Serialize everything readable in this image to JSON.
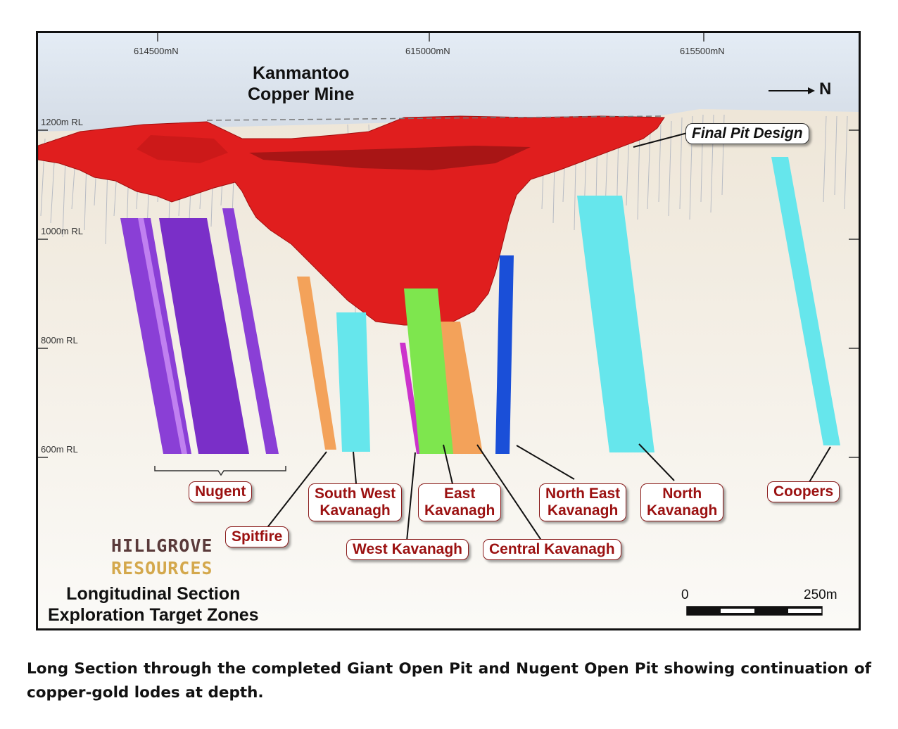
{
  "figure": {
    "title_line1": "Kanmantoo",
    "title_line2": "Copper Mine",
    "north_label": "N",
    "final_pit_label": "Final Pit Design",
    "northings": [
      "614500mN",
      "615000mN",
      "615500mN"
    ],
    "rl_levels": [
      "1200m RL",
      "1000m RL",
      "800m RL",
      "600m RL"
    ],
    "logo_line1": "HILLGROVE",
    "logo_line2": "RESOURCES",
    "subtitle_line1": "Longitudinal Section",
    "subtitle_line2": "Exploration Target Zones",
    "scale_start": "0",
    "scale_end": "250m",
    "colors": {
      "pit": "#e01e1e",
      "sky": "#dfe8f2",
      "ground": "#efe8dc",
      "purple": "#8a3fd6",
      "cyan": "#66e6ec",
      "orange": "#f3a25a",
      "green": "#7ee64e",
      "blue": "#1a4fd8",
      "magenta": "#cc33cc",
      "label_text": "#9b1111"
    },
    "zones": {
      "nugent": "Nugent",
      "spitfire": "Spitfire",
      "south_west_kavanagh_1": "South West",
      "south_west_kavanagh_2": "Kavanagh",
      "west_kavanagh": "West Kavanagh",
      "east_kavanagh_1": "East",
      "east_kavanagh_2": "Kavanagh",
      "central_kavanagh": "Central Kavanagh",
      "north_east_kavanagh_1": "North East",
      "north_east_kavanagh_2": "Kavanagh",
      "north_kavanagh_1": "North",
      "north_kavanagh_2": "Kavanagh",
      "coopers": "Coopers"
    }
  },
  "caption": "Long Section through the completed Giant Open Pit and Nugent Open Pit showing continuation of copper-gold lodes at depth."
}
